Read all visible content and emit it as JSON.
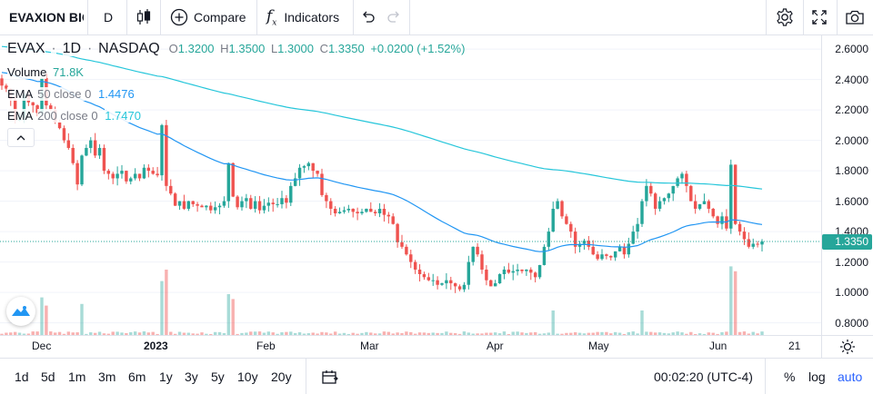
{
  "toolbar": {
    "symbol": "EVAXION BIO",
    "interval": "D",
    "compare": "Compare",
    "indicators": "Indicators"
  },
  "legend": {
    "ticker": "EVAX",
    "interval": "1D",
    "exchange": "NASDAQ",
    "o_label": "O",
    "o": "1.3200",
    "h_label": "H",
    "h": "1.3500",
    "l_label": "L",
    "l": "1.3000",
    "c_label": "C",
    "c": "1.3350",
    "change": "+0.0200 (+1.52%)",
    "volume_label": "Volume",
    "volume_value": "71.8K",
    "ema50_label": "EMA",
    "ema50_params": "50 close 0",
    "ema50_value": "1.4476",
    "ema200_label": "EMA",
    "ema200_params": "200 close 0",
    "ema200_value": "1.7470"
  },
  "price_axis": [
    "2.6000",
    "2.4000",
    "2.2000",
    "2.0000",
    "1.8000",
    "1.6000",
    "1.4000",
    "1.2000",
    "1.0000",
    "0.8000"
  ],
  "last_price_label": "1.3350",
  "time_axis": [
    {
      "label": "Dec",
      "bold": false
    },
    {
      "label": "2023",
      "bold": true
    },
    {
      "label": "Feb",
      "bold": false
    },
    {
      "label": "Mar",
      "bold": false
    },
    {
      "label": "Apr",
      "bold": false
    },
    {
      "label": "May",
      "bold": false
    },
    {
      "label": "Jun",
      "bold": false
    },
    {
      "label": "21",
      "bold": false
    }
  ],
  "ranges": [
    "1d",
    "5d",
    "1m",
    "3m",
    "6m",
    "1y",
    "3y",
    "5y",
    "10y",
    "20y"
  ],
  "clock": "00:02:20 (UTC-4)",
  "scale_options": {
    "percent": "%",
    "log": "log",
    "auto": "auto"
  },
  "colors": {
    "up": "#26a69a",
    "down": "#ef5350",
    "ema50": "#2196f3",
    "ema200": "#26c6da",
    "accent": "#2962ff"
  },
  "chart_data": {
    "type": "candlestick",
    "ylim": [
      0.72,
      2.69
    ],
    "start": "2022-11-21",
    "closes": [
      2.36,
      2.34,
      2.27,
      2.13,
      2.15,
      2.3,
      2.25,
      2.23,
      2.18,
      2.41,
      2.23,
      2.2,
      2.12,
      2.08,
      2.0,
      1.95,
      1.85,
      1.71,
      1.9,
      1.95,
      2.0,
      1.9,
      1.95,
      1.8,
      1.78,
      1.75,
      1.78,
      1.8,
      1.73,
      1.75,
      1.78,
      1.75,
      1.82,
      1.8,
      1.78,
      1.77,
      2.1,
      1.7,
      1.65,
      1.57,
      1.6,
      1.55,
      1.6,
      1.58,
      1.57,
      1.56,
      1.57,
      1.54,
      1.56,
      1.57,
      1.6,
      1.85,
      1.63,
      1.56,
      1.6,
      1.62,
      1.55,
      1.6,
      1.54,
      1.57,
      1.59,
      1.58,
      1.58,
      1.62,
      1.59,
      1.7,
      1.75,
      1.82,
      1.83,
      1.85,
      1.8,
      1.78,
      1.64,
      1.6,
      1.55,
      1.52,
      1.53,
      1.54,
      1.55,
      1.53,
      1.52,
      1.53,
      1.55,
      1.53,
      1.52,
      1.55,
      1.51,
      1.5,
      1.45,
      1.33,
      1.3,
      1.25,
      1.2,
      1.15,
      1.12,
      1.1,
      1.08,
      1.08,
      1.05,
      1.06,
      1.08,
      1.06,
      1.04,
      1.02,
      1.05,
      1.2,
      1.3,
      1.25,
      1.15,
      1.08,
      1.04,
      1.06,
      1.12,
      1.15,
      1.13,
      1.14,
      1.15,
      1.14,
      1.15,
      1.13,
      1.1,
      1.18,
      1.3,
      1.4,
      1.55,
      1.6,
      1.5,
      1.45,
      1.4,
      1.3,
      1.32,
      1.34,
      1.3,
      1.25,
      1.22,
      1.25,
      1.24,
      1.23,
      1.27,
      1.3,
      1.25,
      1.32,
      1.4,
      1.45,
      1.6,
      1.7,
      1.65,
      1.55,
      1.6,
      1.62,
      1.65,
      1.7,
      1.75,
      1.78,
      1.7,
      1.6,
      1.55,
      1.58,
      1.6,
      1.55,
      1.5,
      1.45,
      1.5,
      1.42,
      1.84,
      1.45,
      1.4,
      1.35,
      1.3,
      1.32,
      1.315,
      1.335
    ]
  }
}
